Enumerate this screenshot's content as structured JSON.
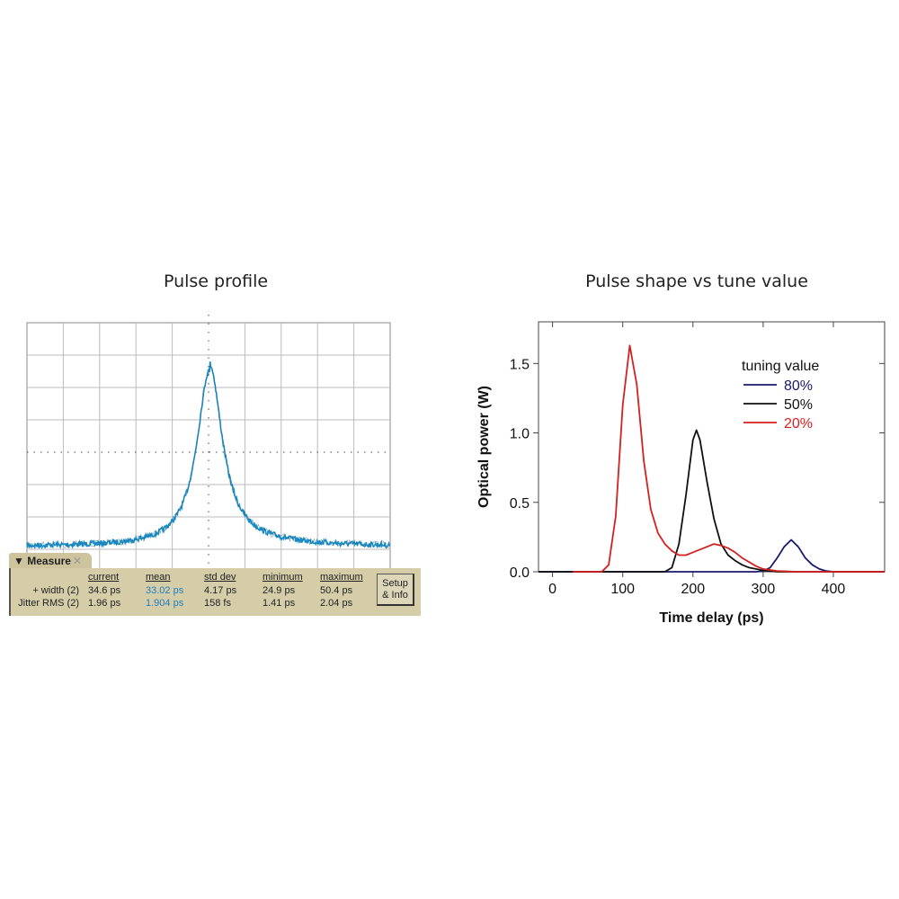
{
  "left_panel": {
    "title": "Pulse profile",
    "trace_color": "#1a8fc7",
    "measure": {
      "tab_label": "Measure",
      "close_icon": "close-x-icon",
      "columns": [
        "current",
        "mean",
        "std dev",
        "minimum",
        "maximum"
      ],
      "rows": [
        {
          "label": "+ width (2)",
          "values": [
            "34.6 ps",
            "33.02 ps",
            "4.17 ps",
            "24.9 ps",
            "50.4 ps"
          ]
        },
        {
          "label": "Jitter RMS (2)",
          "values": [
            "1.96 ps",
            "1.904 ps",
            "158 fs",
            "1.41 ps",
            "2.04 ps"
          ]
        }
      ],
      "setup_button": {
        "line1": "Setup",
        "line2": "& Info"
      }
    }
  },
  "chart_data": {
    "type": "line",
    "title": "Pulse shape vs tune value",
    "xlabel": "Time delay (ps)",
    "ylabel": "Optical power (W)",
    "xlim": [
      -20,
      473
    ],
    "ylim": [
      0,
      1.8
    ],
    "xticks": [
      "0",
      "100",
      "200",
      "300",
      "400"
    ],
    "yticks": [
      "0.0",
      "0.5",
      "1.0",
      "1.5"
    ],
    "xtick_values": [
      0,
      100,
      200,
      300,
      400
    ],
    "ytick_values": [
      0,
      0.5,
      1.0,
      1.5
    ],
    "grid": false,
    "legend_title": "tuning value",
    "legend_placement": "top-right",
    "series": [
      {
        "name": "80%",
        "color": "#1a1a6e",
        "x": [
          -20,
          290,
          300,
          310,
          320,
          330,
          340,
          350,
          360,
          370,
          380,
          390,
          400,
          473
        ],
        "y": [
          0,
          0,
          0.005,
          0.03,
          0.1,
          0.18,
          0.23,
          0.18,
          0.1,
          0.05,
          0.02,
          0.005,
          0,
          0
        ]
      },
      {
        "name": "50%",
        "color": "#111111",
        "x": [
          -20,
          160,
          170,
          180,
          190,
          200,
          205,
          210,
          220,
          230,
          240,
          250,
          260,
          270,
          280,
          300,
          320,
          473
        ],
        "y": [
          0,
          0,
          0.03,
          0.2,
          0.55,
          0.95,
          1.02,
          0.95,
          0.65,
          0.38,
          0.2,
          0.12,
          0.08,
          0.05,
          0.03,
          0.01,
          0,
          0
        ]
      },
      {
        "name": "20%",
        "color": "#d42020",
        "x": [
          29,
          70,
          80,
          90,
          100,
          110,
          120,
          130,
          140,
          150,
          160,
          170,
          180,
          190,
          200,
          210,
          220,
          230,
          240,
          250,
          260,
          270,
          280,
          290,
          300,
          320,
          350,
          473
        ],
        "y": [
          0,
          0,
          0.05,
          0.4,
          1.2,
          1.63,
          1.35,
          0.8,
          0.45,
          0.28,
          0.2,
          0.15,
          0.12,
          0.12,
          0.14,
          0.16,
          0.18,
          0.2,
          0.19,
          0.17,
          0.14,
          0.1,
          0.07,
          0.04,
          0.02,
          0.005,
          0,
          0
        ]
      }
    ]
  }
}
